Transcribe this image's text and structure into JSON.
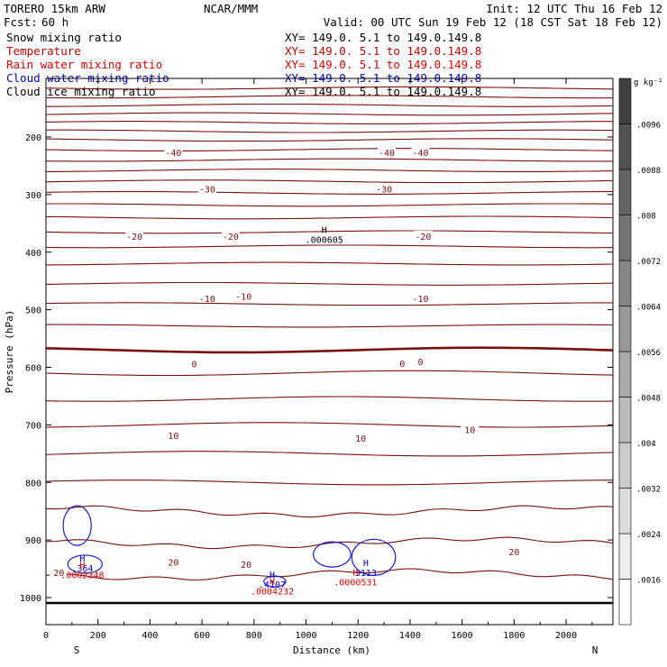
{
  "header": {
    "model": "TORERO  15km ARW",
    "center": "NCAR/MMM",
    "init": "Init: 12 UTC Thu 16 Feb 12",
    "fcst_label": "Fcst:",
    "fcst_value": "60 h",
    "valid": "Valid: 00 UTC Sun 19 Feb 12 (18 CST Sat 18 Feb 12)"
  },
  "legend": [
    {
      "name": "Snow mixing ratio",
      "color": "#000000",
      "xy": "XY= 149.0.  5.1 to 149.0.149.8"
    },
    {
      "name": "Temperature",
      "color": "#c00000",
      "xy": "XY= 149.0.  5.1 to 149.0.149.8"
    },
    {
      "name": "Rain water mixing ratio",
      "color": "#e00000",
      "xy": "XY= 149.0.  5.1 to 149.0.149.8"
    },
    {
      "name": "Cloud water mixing ratio",
      "color": "#0000c0",
      "xy": "XY= 149.0.  5.1 to 149.0.149.8"
    },
    {
      "name": "Cloud ice mixing ratio",
      "color": "#000000",
      "xy": "XY= 149.0.  5.1 to 149.0.149.8"
    }
  ],
  "chart_data": {
    "type": "contour-cross-section",
    "xlabel": "Distance (km)",
    "ylabel": "Pressure (hPa)",
    "xlim": [
      0,
      2180
    ],
    "ylim": [
      1030,
      100
    ],
    "x_ticks": [
      "0",
      "200",
      "400",
      "600",
      "800",
      "1000",
      "1200",
      "1400",
      "1600",
      "1800",
      "2000"
    ],
    "y_ticks": [
      "200",
      "300",
      "400",
      "500",
      "600",
      "700",
      "800",
      "900",
      "1000"
    ],
    "x_end_labels": {
      "left": "S",
      "right": "N"
    },
    "colorbar": {
      "unit": "g kg⁻¹",
      "labels": [
        ".0016",
        ".0024",
        ".0032",
        ".004",
        ".0048",
        ".0056",
        ".0064",
        ".0072",
        ".008",
        ".0088",
        ".0096"
      ]
    },
    "isotherms_pressure_hpa": [
      115,
      130,
      145,
      160,
      175,
      190,
      205,
      222,
      240,
      258,
      277,
      297,
      318,
      340,
      365,
      390,
      420,
      455,
      490,
      528,
      570,
      610,
      655,
      700,
      750,
      800,
      850,
      905,
      960
    ],
    "zero_isotherm_hpa": 570,
    "temperature_labels": [
      {
        "text": "-40",
        "x": 490,
        "p": 227
      },
      {
        "text": "-40",
        "x": 1310,
        "p": 227
      },
      {
        "text": "-40",
        "x": 1440,
        "p": 227
      },
      {
        "text": "-30",
        "x": 620,
        "p": 290
      },
      {
        "text": "-30",
        "x": 1300,
        "p": 290
      },
      {
        "text": "-20",
        "x": 340,
        "p": 372
      },
      {
        "text": "-20",
        "x": 710,
        "p": 372
      },
      {
        "text": "-20",
        "x": 1450,
        "p": 372
      },
      {
        "text": "-10",
        "x": 620,
        "p": 480
      },
      {
        "text": "-10",
        "x": 760,
        "p": 476
      },
      {
        "text": "-10",
        "x": 1440,
        "p": 480
      },
      {
        "text": "0",
        "x": 570,
        "p": 594
      },
      {
        "text": "0",
        "x": 1370,
        "p": 593
      },
      {
        "text": "0",
        "x": 1440,
        "p": 590
      },
      {
        "text": "10",
        "x": 490,
        "p": 718
      },
      {
        "text": "10",
        "x": 1210,
        "p": 723
      },
      {
        "text": "10",
        "x": 1630,
        "p": 708
      },
      {
        "text": "20",
        "x": 50,
        "p": 956
      },
      {
        "text": "20",
        "x": 490,
        "p": 938
      },
      {
        "text": "20",
        "x": 770,
        "p": 942
      },
      {
        "text": "20",
        "x": 1800,
        "p": 920
      }
    ],
    "extrema": [
      {
        "mark": "H",
        "value": ".000605",
        "x": 1070,
        "p": 379,
        "color": "#000000"
      },
      {
        "mark": "H",
        "value": ".364",
        "x": 140,
        "p": 950,
        "color": "#0000c0"
      },
      {
        "mark": "H",
        "value": ".0002348",
        "x": 140,
        "p": 962,
        "color": "#e00000"
      },
      {
        "mark": "H",
        "value": ".4107",
        "x": 870,
        "p": 978,
        "color": "#0000c0"
      },
      {
        "mark": "H",
        "value": ".0004232",
        "x": 870,
        "p": 990,
        "color": "#e00000"
      },
      {
        "mark": "H",
        "value": "3113",
        "x": 1230,
        "p": 958,
        "color": "#0000c0"
      },
      {
        "mark": "H",
        "value": ".0000531",
        "x": 1190,
        "p": 974,
        "color": "#e00000"
      }
    ]
  }
}
